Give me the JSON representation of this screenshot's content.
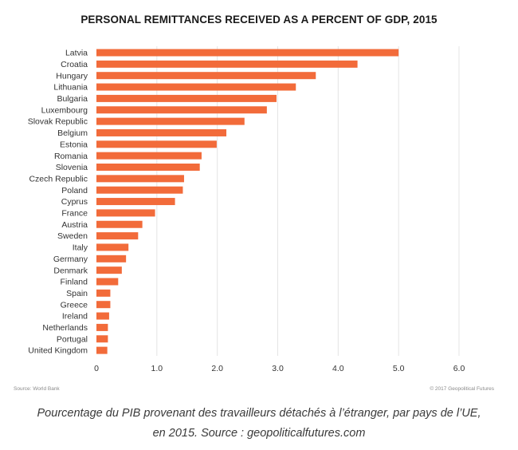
{
  "chart_data": {
    "type": "bar",
    "orientation": "horizontal",
    "title": "PERSONAL REMITTANCES RECEIVED AS A PERCENT OF GDP, 2015",
    "categories": [
      "Latvia",
      "Croatia",
      "Hungary",
      "Lithuania",
      "Bulgaria",
      "Luxembourg",
      "Slovak Republic",
      "Belgium",
      "Estonia",
      "Romania",
      "Slovenia",
      "Czech Republic",
      "Poland",
      "Cyprus",
      "France",
      "Austria",
      "Sweden",
      "Italy",
      "Germany",
      "Denmark",
      "Finland",
      "Spain",
      "Greece",
      "Ireland",
      "Netherlands",
      "Portugal",
      "United Kingdom"
    ],
    "values": [
      5.0,
      4.32,
      3.63,
      3.3,
      2.98,
      2.82,
      2.45,
      2.15,
      1.99,
      1.74,
      1.71,
      1.45,
      1.43,
      1.3,
      0.97,
      0.76,
      0.69,
      0.53,
      0.49,
      0.42,
      0.36,
      0.23,
      0.23,
      0.21,
      0.19,
      0.19,
      0.18
    ],
    "xlim": [
      0,
      6.0
    ],
    "xticks": [
      "0",
      "1.0",
      "2.0",
      "3.0",
      "4.0",
      "5.0",
      "6.0"
    ],
    "grid": true,
    "bar_color": "#f26b3a",
    "grid_color": "#e4e4e4"
  },
  "footer": {
    "source": "Source: World Bank",
    "copyright": "© 2017 Geopolitical Futures"
  },
  "caption": {
    "line1": "Pourcentage du PIB provenant des travailleurs détachés à l’étranger, par pays de l’UE,",
    "line2": "en 2015. Source : geopoliticalfutures.com"
  }
}
